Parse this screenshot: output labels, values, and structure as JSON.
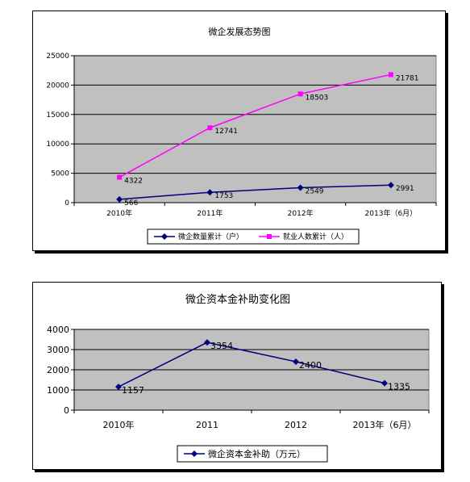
{
  "chart_data": [
    {
      "type": "line",
      "title": "微企发展态势图",
      "categories": [
        "2010年",
        "2011年",
        "2012年",
        "2013年（6月）"
      ],
      "series": [
        {
          "name": "微企数量累计（户）",
          "values": [
            566,
            1753,
            2549,
            2991
          ],
          "labels": [
            "566",
            "1753",
            "2549",
            "2991"
          ],
          "color": "#000080",
          "marker": "diamond"
        },
        {
          "name": "就业人数累计（人）",
          "values": [
            4322,
            12741,
            18503,
            21781
          ],
          "labels": [
            "4322",
            "12741",
            "18503",
            "21781"
          ],
          "color": "#ff00ff",
          "marker": "square"
        }
      ],
      "ylim": [
        0,
        25000
      ],
      "yticks": [
        0,
        5000,
        10000,
        15000,
        20000,
        25000
      ],
      "ytick_labels": [
        "0",
        "5000",
        "10000",
        "15000",
        "20000",
        "25000"
      ],
      "grid": true,
      "plot_background": "#c0c0c0",
      "legend_position": "bottom"
    },
    {
      "type": "line",
      "title": "微企资本金补助变化图",
      "categories": [
        "2010年",
        "2011",
        "2012",
        "2013年（6月）"
      ],
      "series": [
        {
          "name": "微企资本金补助（万元）",
          "values": [
            1157,
            3354,
            2400,
            1335
          ],
          "labels": [
            "1157",
            "3354",
            "2400",
            "1335"
          ],
          "color": "#000080",
          "marker": "diamond"
        }
      ],
      "ylim": [
        0,
        4000
      ],
      "yticks": [
        0,
        1000,
        2000,
        3000,
        4000
      ],
      "ytick_labels": [
        "0",
        "1000",
        "2000",
        "3000",
        "4000"
      ],
      "grid": true,
      "plot_background": "#c0c0c0",
      "legend_position": "bottom"
    }
  ]
}
